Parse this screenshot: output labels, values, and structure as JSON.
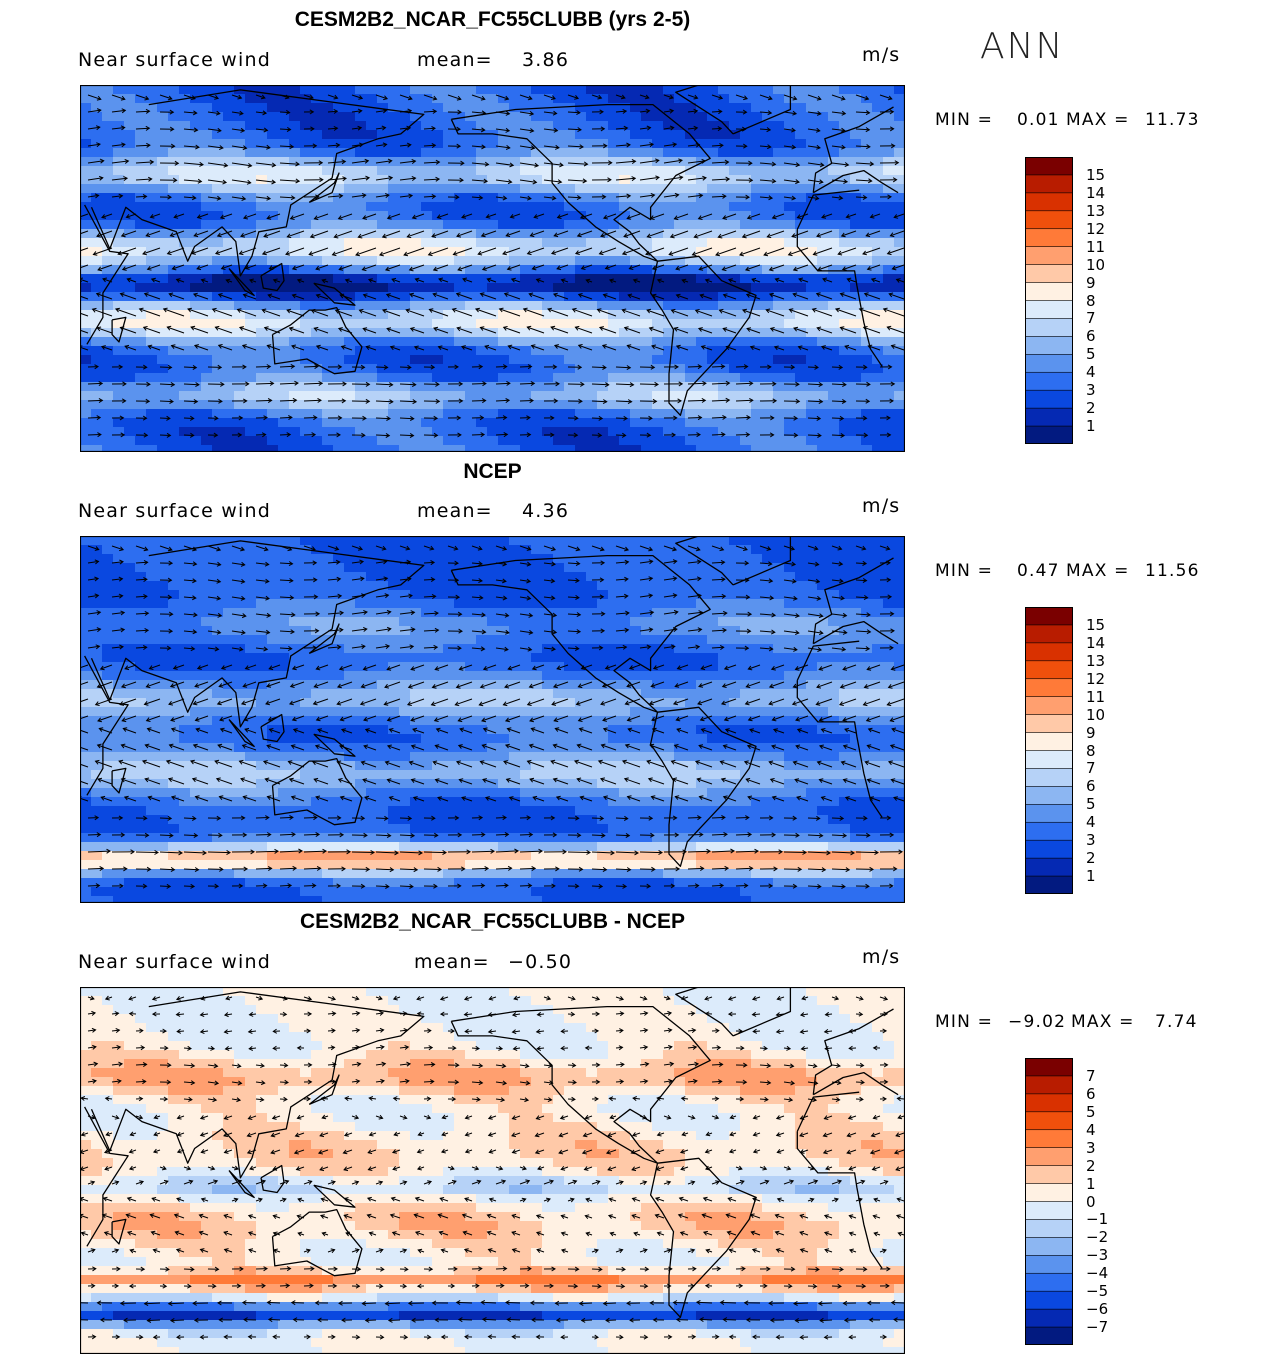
{
  "season": "ANN",
  "panels": [
    {
      "title": "CESM2B2_NCAR_FC55CLUBB (yrs 2-5)",
      "variable": "Near surface wind",
      "mean_label": "mean=",
      "mean_value": "3.86",
      "units": "m/s",
      "min_label": "MIN =",
      "min_value": "0.01",
      "max_label": "MAX =",
      "max_value": "11.73",
      "colorbar": {
        "labels": [
          "15",
          "14",
          "13",
          "12",
          "11",
          "10",
          "9",
          "8",
          "7",
          "6",
          "5",
          "4",
          "3",
          "2",
          "1"
        ],
        "colors": [
          "#7a0000",
          "#b81c00",
          "#d93100",
          "#f0500c",
          "#ff7a38",
          "#ff9f6f",
          "#ffc9a8",
          "#fff1e3",
          "#dcebfb",
          "#b6d2f7",
          "#8cb6f2",
          "#5b93ee",
          "#2d6ef0",
          "#0a48e0",
          "#0529b3",
          "#021a80"
        ]
      },
      "field": "model"
    },
    {
      "title": "NCEP",
      "variable": "Near surface wind",
      "mean_label": "mean=",
      "mean_value": "4.36",
      "units": "m/s",
      "min_label": "MIN =",
      "min_value": "0.47",
      "max_label": "MAX =",
      "max_value": "11.56",
      "colorbar": {
        "labels": [
          "15",
          "14",
          "13",
          "12",
          "11",
          "10",
          "9",
          "8",
          "7",
          "6",
          "5",
          "4",
          "3",
          "2",
          "1"
        ],
        "colors": [
          "#7a0000",
          "#b81c00",
          "#d93100",
          "#f0500c",
          "#ff7a38",
          "#ff9f6f",
          "#ffc9a8",
          "#fff1e3",
          "#dcebfb",
          "#b6d2f7",
          "#8cb6f2",
          "#5b93ee",
          "#2d6ef0",
          "#0a48e0",
          "#0529b3",
          "#021a80"
        ]
      },
      "field": "obs"
    },
    {
      "title": "CESM2B2_NCAR_FC55CLUBB - NCEP",
      "variable": "Near surface wind",
      "mean_label": "mean=",
      "mean_value": "−0.50",
      "units": "m/s",
      "min_label": "MIN =",
      "min_value": "−9.02",
      "max_label": "MAX =",
      "max_value": "7.74",
      "colorbar": {
        "labels": [
          "7",
          "6",
          "5",
          "4",
          "3",
          "2",
          "1",
          "0",
          "−1",
          "−2",
          "−3",
          "−4",
          "−5",
          "−6",
          "−7"
        ],
        "colors": [
          "#7a0000",
          "#b81c00",
          "#d93100",
          "#f0500c",
          "#ff7a38",
          "#ff9f6f",
          "#ffc9a8",
          "#fff1e3",
          "#dcebfb",
          "#b6d2f7",
          "#8cb6f2",
          "#5b93ee",
          "#2d6ef0",
          "#0a48e0",
          "#0529b3",
          "#021a80"
        ]
      },
      "field": "diff"
    }
  ]
}
